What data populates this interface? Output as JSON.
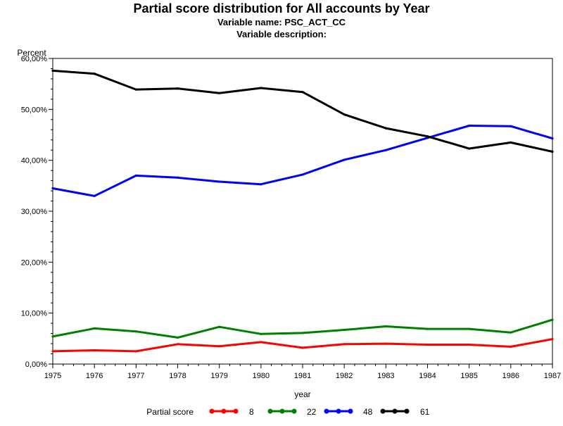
{
  "chart_data": {
    "type": "line",
    "title": "Partial score distribution for All accounts by Year",
    "subtitle_1": "Variable name: PSC_ACT_CC",
    "subtitle_2": "Variable description:",
    "xlabel": "year",
    "ylabel": "Percent",
    "x": [
      1975,
      1976,
      1977,
      1978,
      1979,
      1980,
      1981,
      1982,
      1983,
      1984,
      1985,
      1986,
      1987
    ],
    "x_tick_labels": [
      "1975",
      "1976",
      "1977",
      "1978",
      "1979",
      "1980",
      "1981",
      "1982",
      "1983",
      "1984",
      "1985",
      "1986",
      "1987"
    ],
    "y_ticks": [
      0,
      10,
      20,
      30,
      40,
      50,
      60
    ],
    "y_tick_labels": [
      "0,00%",
      "10,00%",
      "20,00%",
      "30,00%",
      "40,00%",
      "50,00%",
      "60,00%"
    ],
    "ylim": [
      0,
      60
    ],
    "grid": false,
    "legend_title": "Partial score",
    "legend_position": "bottom",
    "series": [
      {
        "name": "8",
        "color": "#ff0000",
        "values": [
          2.5,
          2.7,
          2.5,
          3.9,
          3.5,
          4.3,
          3.2,
          3.9,
          4.0,
          3.8,
          3.8,
          3.4,
          4.9
        ]
      },
      {
        "name": "22",
        "color": "#008000",
        "values": [
          5.4,
          7.0,
          6.4,
          5.2,
          7.3,
          5.9,
          6.1,
          6.7,
          7.4,
          6.9,
          6.9,
          6.2,
          8.7
        ]
      },
      {
        "name": "48",
        "color": "#0000ff",
        "values": [
          34.5,
          33.0,
          37.0,
          36.6,
          35.8,
          35.3,
          37.2,
          40.1,
          42.0,
          44.4,
          46.8,
          46.7,
          44.3
        ]
      },
      {
        "name": "61",
        "color": "#000000",
        "values": [
          57.6,
          57.0,
          53.9,
          54.1,
          53.2,
          54.2,
          53.4,
          49.0,
          46.3,
          44.7,
          42.3,
          43.5,
          41.7
        ]
      }
    ]
  }
}
